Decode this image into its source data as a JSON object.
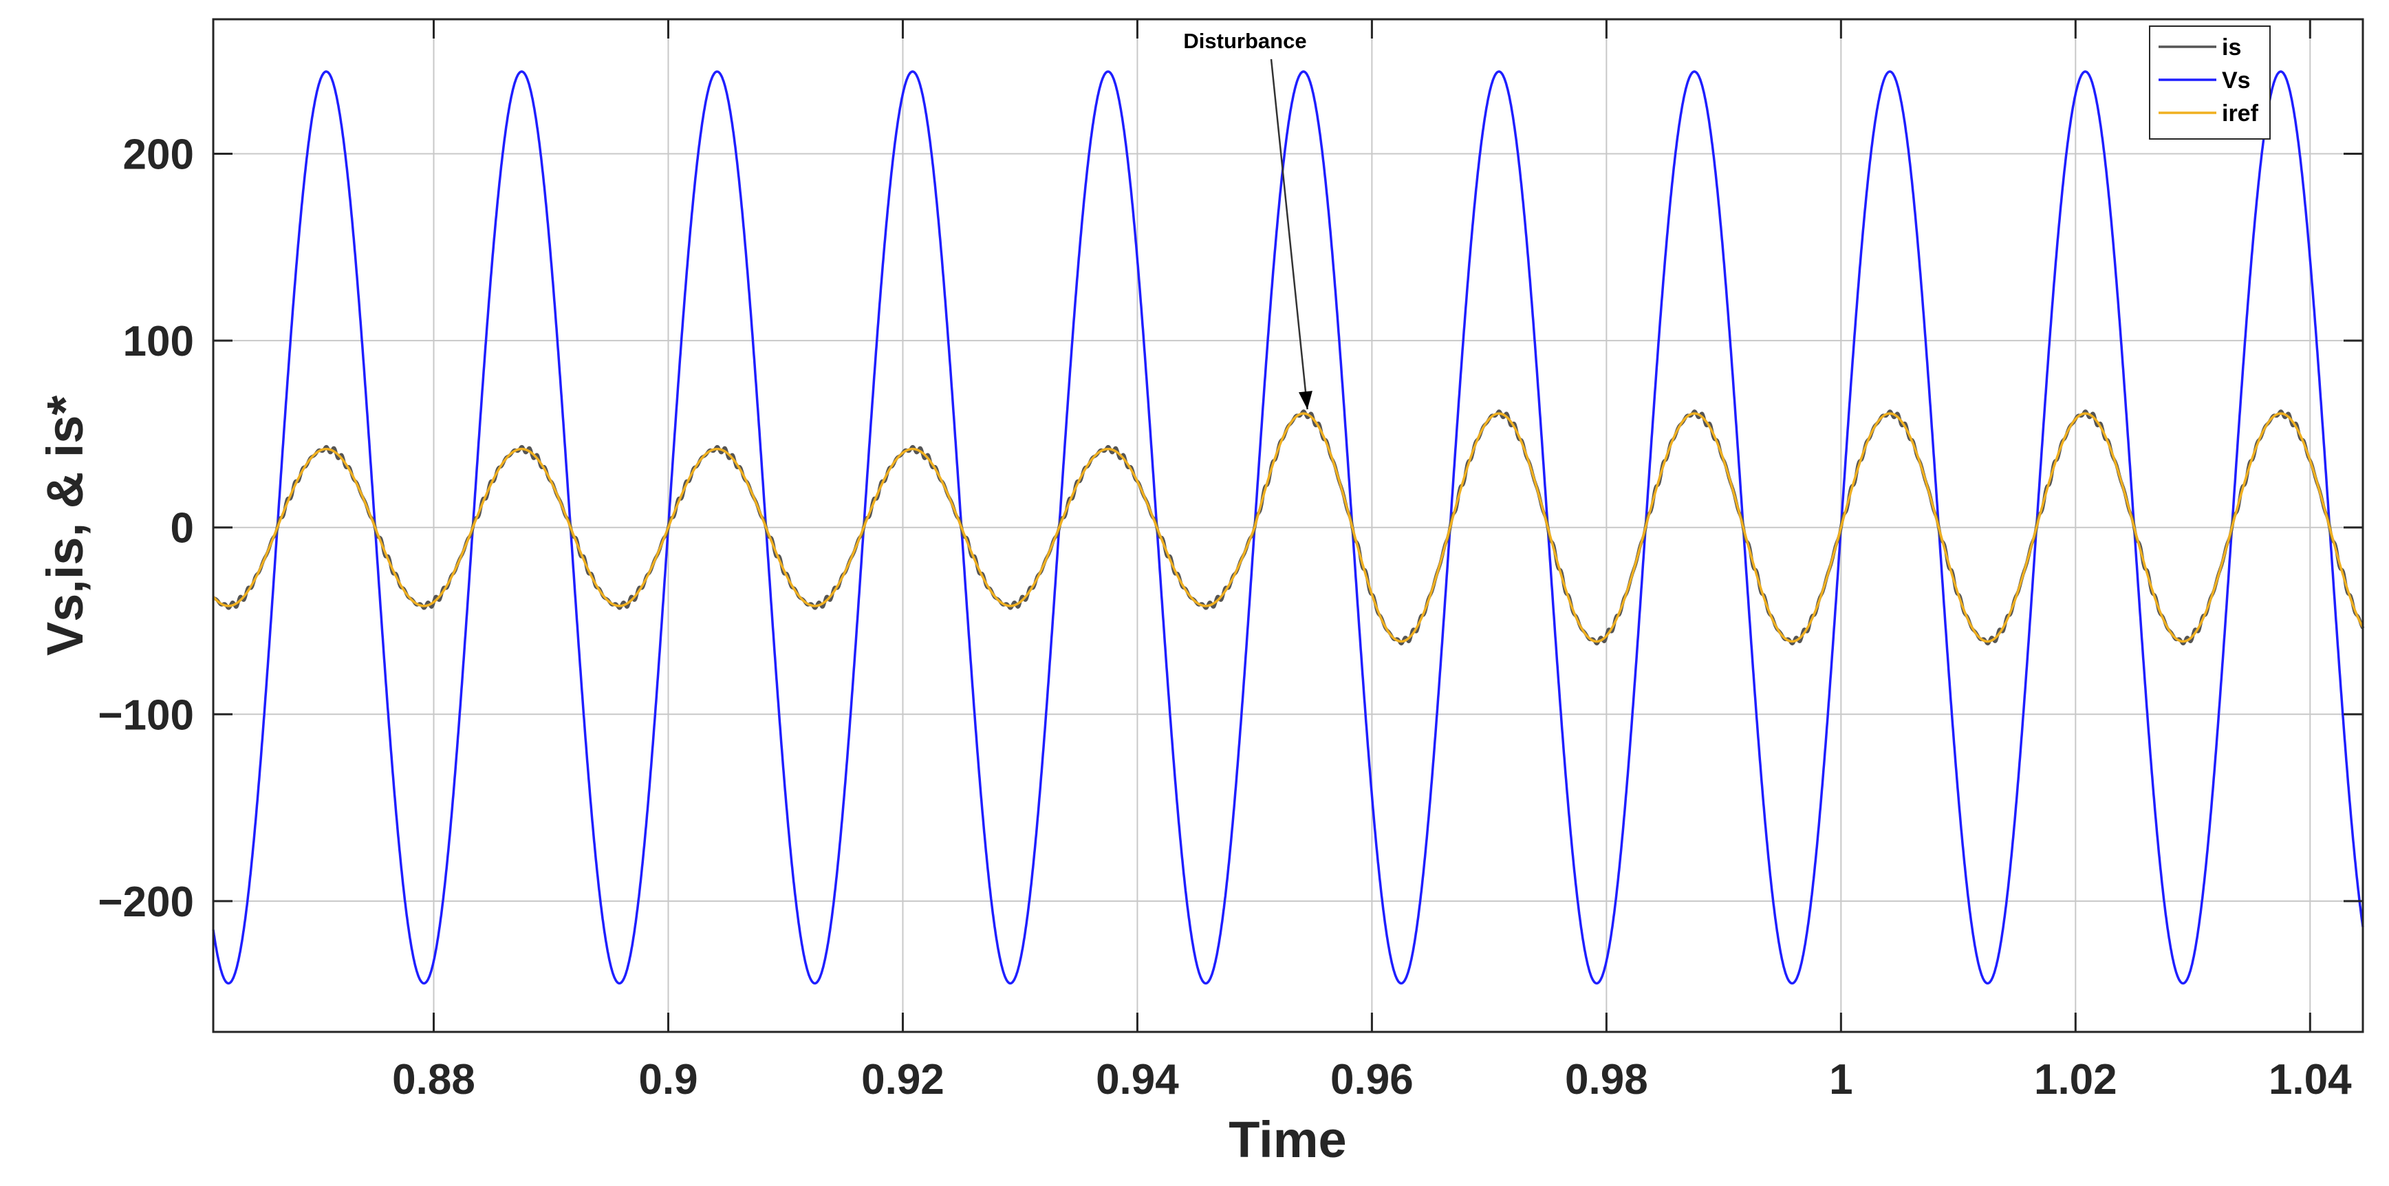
{
  "chart_data": {
    "type": "line",
    "title": "",
    "xlabel": "Time",
    "ylabel": "Vs,is, & is*",
    "xlim": [
      0.8612,
      1.0445
    ],
    "ylim": [
      -270,
      272
    ],
    "xticks": [
      0.88,
      0.9,
      0.92,
      0.94,
      0.96,
      0.98,
      1.0,
      1.02,
      1.04
    ],
    "xtick_labels": [
      "0.88",
      "0.9",
      "0.92",
      "0.94",
      "0.96",
      "0.98",
      "1",
      "1.02",
      "1.04"
    ],
    "yticks": [
      -200,
      -100,
      0,
      100,
      200
    ],
    "ytick_labels": [
      "−200",
      "−100",
      "0",
      "100",
      "200"
    ],
    "grid": true,
    "legend_position": "top-right",
    "frequency_hz": 60,
    "disturbance_time": 0.95,
    "series": [
      {
        "name": "is",
        "color": "#555555",
        "amplitude_before": 42,
        "amplitude_after": 61,
        "phase_deg": 0,
        "ripple": 2
      },
      {
        "name": "Vs",
        "color": "#1f1fff",
        "amplitude_before": 244,
        "amplitude_after": 244,
        "phase_deg": 0,
        "ripple": 0
      },
      {
        "name": "iref",
        "color": "#f0b020",
        "amplitude_before": 42,
        "amplitude_after": 61,
        "phase_deg": 0,
        "ripple": 0
      }
    ],
    "annotations": [
      {
        "text": "Disturbance",
        "point_x": 0.9545,
        "point_y": 61
      }
    ]
  }
}
